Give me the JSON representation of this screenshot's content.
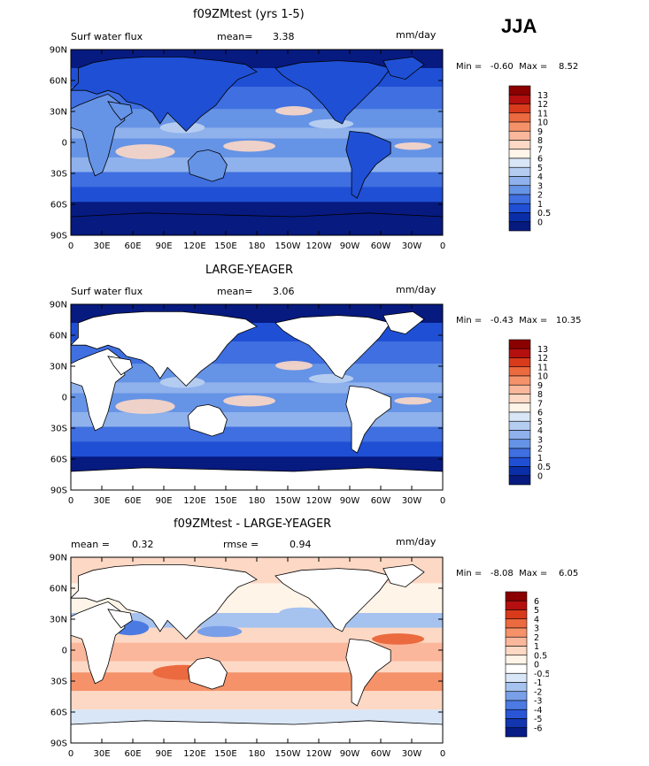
{
  "season": "JJA",
  "panels": [
    {
      "title": "f09ZMtest (yrs 1-5)",
      "left_label": "Surf water flux",
      "stat_label": "mean=",
      "stat_value": "3.38",
      "units": "mm/day",
      "min_max": "Min =   -0.60  Max =    8.52",
      "kind": "abs",
      "land_masked": false,
      "colorbar": [
        "13",
        "12",
        "11",
        "10",
        "9",
        "8",
        "7",
        "6",
        "5",
        "4",
        "3",
        "2",
        "1",
        "0.5",
        "0"
      ],
      "colors": [
        "#8b0000",
        "#b50f0f",
        "#d93a1c",
        "#ec6a3f",
        "#f5926a",
        "#fbb79b",
        "#fdd8c4",
        "#fff4e8",
        "#d9e6f7",
        "#b5ccf1",
        "#8fb1ec",
        "#6593e6",
        "#3f6fe0",
        "#1f4fd4",
        "#0a2ea8",
        "#061a80"
      ]
    },
    {
      "title": "LARGE-YEAGER",
      "left_label": "Surf water flux",
      "stat_label": "mean=",
      "stat_value": "3.06",
      "units": "mm/day",
      "min_max": "Min =   -0.43  Max =   10.35",
      "kind": "abs",
      "land_masked": true,
      "colorbar": [
        "13",
        "12",
        "11",
        "10",
        "9",
        "8",
        "7",
        "6",
        "5",
        "4",
        "3",
        "2",
        "1",
        "0.5",
        "0"
      ],
      "colors": [
        "#8b0000",
        "#b50f0f",
        "#d93a1c",
        "#ec6a3f",
        "#f5926a",
        "#fbb79b",
        "#fdd8c4",
        "#fff4e8",
        "#d9e6f7",
        "#b5ccf1",
        "#8fb1ec",
        "#6593e6",
        "#3f6fe0",
        "#1f4fd4",
        "#0a2ea8",
        "#061a80"
      ]
    },
    {
      "title": "f09ZMtest - LARGE-YEAGER",
      "left_label": "mean =",
      "left_value": "0.32",
      "stat_label": "rmse =",
      "stat_value": "0.94",
      "units": "mm/day",
      "min_max": "Min =   -8.08  Max =    6.05",
      "kind": "diff",
      "land_masked": true,
      "colorbar": [
        "6",
        "5",
        "4",
        "3",
        "2",
        "1",
        "0.5",
        "0",
        "-0.5",
        "-1",
        "-2",
        "-3",
        "-4",
        "-5",
        "-6"
      ],
      "colors": [
        "#8b0000",
        "#b50f0f",
        "#d93a1c",
        "#ec6a3f",
        "#f5926a",
        "#fbb79b",
        "#fdd8c4",
        "#fff4e8",
        "#ffffff",
        "#d9e6f7",
        "#a6c2ef",
        "#7a9fe9",
        "#4c7ae3",
        "#2a56d6",
        "#1235b0",
        "#071c86"
      ]
    }
  ],
  "lat_labels": [
    "90N",
    "60N",
    "30N",
    "0",
    "30S",
    "60S",
    "90S"
  ],
  "lon_labels": [
    "0",
    "30E",
    "60E",
    "90E",
    "120E",
    "150E",
    "180",
    "150W",
    "120W",
    "90W",
    "60W",
    "30W",
    "0"
  ]
}
